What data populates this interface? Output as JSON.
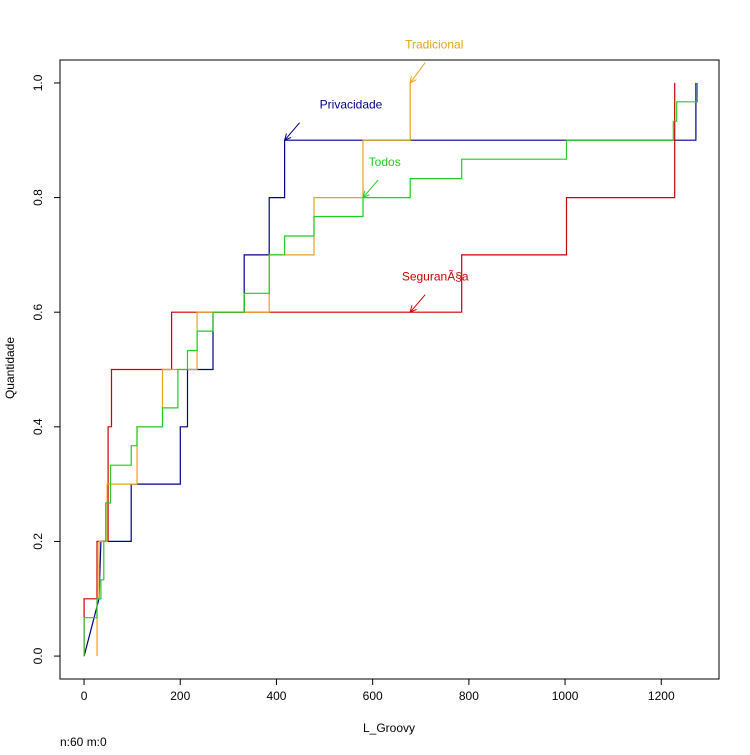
{
  "chart_data": {
    "type": "line",
    "step": true,
    "xlabel": "L_Groovy",
    "ylabel": "Quantidade",
    "footnote": "n:60 m:0",
    "xlim": [
      -50,
      1320
    ],
    "ylim": [
      -0.04,
      1.04
    ],
    "x_ticks": [
      0,
      200,
      400,
      600,
      800,
      1000,
      1200
    ],
    "y_ticks": [
      0.0,
      0.2,
      0.4,
      0.6,
      0.8,
      1.0
    ],
    "x_tick_labels": [
      "0",
      "200",
      "400",
      "600",
      "800",
      "1000",
      "1200"
    ],
    "y_tick_labels": [
      "0.0",
      "0.2",
      "0.4",
      "0.6",
      "0.8",
      "1.0"
    ],
    "grid": false,
    "series": [
      {
        "name": "Privacidade",
        "color": "#00008b",
        "points": [
          [
            0,
            0.0
          ],
          [
            31,
            0.1
          ],
          [
            35,
            0.2
          ],
          [
            98,
            0.2
          ],
          [
            98,
            0.3
          ],
          [
            200,
            0.3
          ],
          [
            200,
            0.4
          ],
          [
            215,
            0.4
          ],
          [
            215,
            0.5
          ],
          [
            268,
            0.5
          ],
          [
            268,
            0.6
          ],
          [
            333,
            0.6
          ],
          [
            333,
            0.7
          ],
          [
            385,
            0.7
          ],
          [
            385,
            0.8
          ],
          [
            417,
            0.8
          ],
          [
            417,
            0.9
          ],
          [
            1230,
            0.9
          ],
          [
            1230,
            0.9
          ],
          [
            1272,
            0.9
          ],
          [
            1272,
            1.0
          ]
        ],
        "annotation": {
          "text": "Privacidade",
          "label_x": 555,
          "label_y": 0.955,
          "arrow_x": 417,
          "arrow_y": 0.9
        }
      },
      {
        "name": "Segurança",
        "label_text": "SeguranÃ§a",
        "color": "#cd0000",
        "points": [
          [
            0,
            0.0
          ],
          [
            0,
            0.1
          ],
          [
            27,
            0.1
          ],
          [
            27,
            0.2
          ],
          [
            50,
            0.2
          ],
          [
            50,
            0.4
          ],
          [
            57,
            0.4
          ],
          [
            57,
            0.5
          ],
          [
            182,
            0.5
          ],
          [
            182,
            0.6
          ],
          [
            785,
            0.6
          ],
          [
            785,
            0.7
          ],
          [
            1003,
            0.7
          ],
          [
            1003,
            0.8
          ],
          [
            1228,
            0.8
          ],
          [
            1228,
            1.0
          ]
        ],
        "annotation": {
          "text": "SeguranÃ§a",
          "label_x": 730,
          "label_y": 0.655,
          "arrow_x": 678,
          "arrow_y": 0.6
        }
      },
      {
        "name": "Tradicional",
        "color": "#e8a317",
        "points": [
          [
            27,
            0.0
          ],
          [
            27,
            0.1
          ],
          [
            31,
            0.1
          ],
          [
            31,
            0.2
          ],
          [
            48,
            0.2
          ],
          [
            48,
            0.3
          ],
          [
            110,
            0.3
          ],
          [
            110,
            0.4
          ],
          [
            163,
            0.4
          ],
          [
            163,
            0.5
          ],
          [
            235,
            0.5
          ],
          [
            235,
            0.6
          ],
          [
            385,
            0.6
          ],
          [
            385,
            0.7
          ],
          [
            478,
            0.7
          ],
          [
            478,
            0.8
          ],
          [
            580,
            0.8
          ],
          [
            580,
            0.9
          ],
          [
            678,
            0.9
          ],
          [
            678,
            1.0
          ]
        ],
        "annotation": {
          "text": "Tradicional",
          "label_x": 728,
          "label_y": 1.06,
          "arrow_x": 678,
          "arrow_y": 1.0
        }
      },
      {
        "name": "Todos",
        "color": "#22cc22",
        "points": [
          [
            0,
            0.0
          ],
          [
            0,
            0.067
          ],
          [
            27,
            0.067
          ],
          [
            27,
            0.1
          ],
          [
            35,
            0.1
          ],
          [
            35,
            0.133
          ],
          [
            41,
            0.133
          ],
          [
            41,
            0.2
          ],
          [
            45,
            0.2
          ],
          [
            45,
            0.267
          ],
          [
            55,
            0.267
          ],
          [
            55,
            0.333
          ],
          [
            98,
            0.333
          ],
          [
            98,
            0.367
          ],
          [
            110,
            0.367
          ],
          [
            110,
            0.4
          ],
          [
            163,
            0.4
          ],
          [
            163,
            0.433
          ],
          [
            195,
            0.433
          ],
          [
            195,
            0.5
          ],
          [
            215,
            0.5
          ],
          [
            215,
            0.533
          ],
          [
            235,
            0.533
          ],
          [
            235,
            0.567
          ],
          [
            268,
            0.567
          ],
          [
            268,
            0.6
          ],
          [
            333,
            0.6
          ],
          [
            333,
            0.633
          ],
          [
            385,
            0.633
          ],
          [
            385,
            0.7
          ],
          [
            417,
            0.7
          ],
          [
            417,
            0.733
          ],
          [
            478,
            0.733
          ],
          [
            478,
            0.767
          ],
          [
            580,
            0.767
          ],
          [
            580,
            0.8
          ],
          [
            678,
            0.8
          ],
          [
            678,
            0.833
          ],
          [
            785,
            0.833
          ],
          [
            785,
            0.867
          ],
          [
            1003,
            0.867
          ],
          [
            1003,
            0.9
          ],
          [
            1225,
            0.9
          ],
          [
            1225,
            0.933
          ],
          [
            1232,
            0.933
          ],
          [
            1232,
            0.967
          ],
          [
            1275,
            0.967
          ],
          [
            1275,
            1.0
          ]
        ],
        "annotation": {
          "text": "Todos",
          "label_x": 625,
          "label_y": 0.855,
          "arrow_x": 580,
          "arrow_y": 0.8
        }
      }
    ]
  }
}
